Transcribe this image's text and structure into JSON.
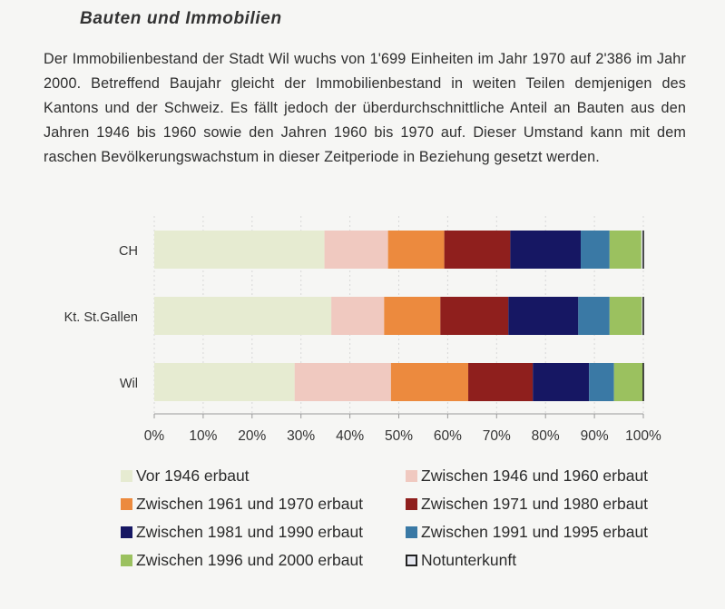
{
  "heading": "Bauten und Immobilien",
  "paragraph": "Der Immobilienbestand der Stadt Wil wuchs von 1'699 Einheiten im Jahr 1970 auf 2'386 im Jahr 2000. Betreffend Baujahr gleicht der Immobilienbestand in weiten Teilen demjenigen des Kantons und der Schweiz. Es fällt jedoch der überdurchschnittliche Anteil an Bauten aus den Jahren 1946 bis 1960 sowie den Jahren 1960 bis 1970 auf. Dieser Umstand kann mit dem raschen Bevölkerungswachstum in dieser Zeitperiode in Beziehung gesetzt werden.",
  "chart_data": {
    "type": "bar",
    "orientation": "horizontal",
    "stacked": true,
    "title": "",
    "xlabel": "",
    "ylabel": "",
    "xlim": [
      0,
      100
    ],
    "x_ticks": [
      "0%",
      "10%",
      "20%",
      "30%",
      "40%",
      "50%",
      "60%",
      "70%",
      "80%",
      "90%",
      "100%"
    ],
    "categories": [
      "CH",
      "Kt. St.Gallen",
      "Wil"
    ],
    "legend_position": "bottom",
    "series": [
      {
        "name": "Vor 1946 erbaut",
        "color": "#e6ebd1",
        "values": [
          34.8,
          36.2,
          28.7
        ]
      },
      {
        "name": "Zwischen 1946 und 1960 erbaut",
        "color": "#f0c9c0",
        "values": [
          13.0,
          10.8,
          19.7
        ]
      },
      {
        "name": "Zwischen 1961 und 1970 erbaut",
        "color": "#ec8a3e",
        "values": [
          11.5,
          11.5,
          15.8
        ]
      },
      {
        "name": "Zwischen 1971 und 1980 erbaut",
        "color": "#8f1f1d",
        "values": [
          13.5,
          13.9,
          13.2
        ]
      },
      {
        "name": "Zwischen 1981 und 1990 erbaut",
        "color": "#161763",
        "values": [
          14.4,
          14.3,
          11.5
        ]
      },
      {
        "name": "Zwischen 1991 und 1995 erbaut",
        "color": "#3a79a5",
        "values": [
          5.9,
          6.4,
          5.1
        ]
      },
      {
        "name": "Zwischen 1996 und 2000 erbaut",
        "color": "#9bc15f",
        "values": [
          6.5,
          6.6,
          5.9
        ]
      },
      {
        "name": "Notunterkunft",
        "color": "#e4e6ee",
        "values": [
          0.4,
          0.3,
          0.1
        ]
      }
    ]
  }
}
